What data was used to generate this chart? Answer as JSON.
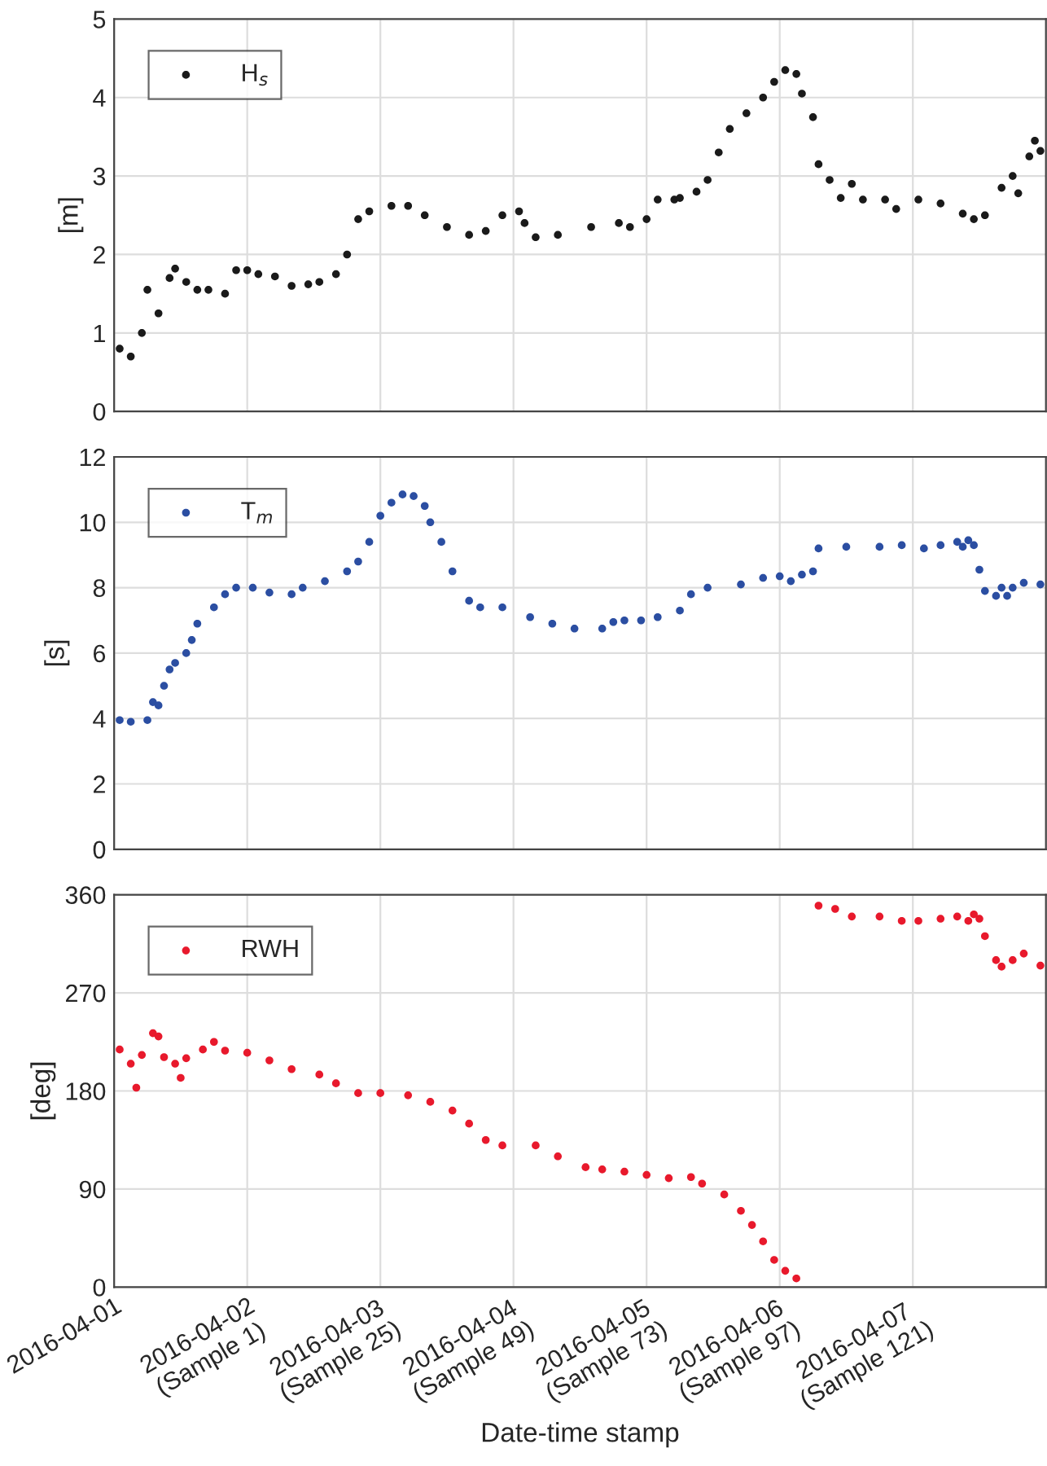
{
  "chart_data": [
    {
      "type": "scatter",
      "ylabel": "[m]",
      "legend": "top left",
      "grid": true,
      "marker": "circle",
      "tick_labels": "y",
      "xlim": [
        "2016-04-01",
        "2016-04-08"
      ],
      "xticks": [
        "2016-04-01",
        "2016-04-02",
        "2016-04-03",
        "2016-04-04",
        "2016-04-05",
        "2016-04-06",
        "2016-04-07"
      ],
      "ylim": [
        0,
        5
      ],
      "yticks": [
        0,
        1,
        2,
        3,
        4,
        5
      ],
      "series": [
        {
          "name": "H$_{s}$",
          "color": "#1a1a1a",
          "x": [
            "2016-04-01T01:00",
            "2016-04-01T03:00",
            "2016-04-01T05:00",
            "2016-04-01T06:00",
            "2016-04-01T08:00",
            "2016-04-01T10:00",
            "2016-04-01T11:00",
            "2016-04-01T13:00",
            "2016-04-01T15:00",
            "2016-04-01T17:00",
            "2016-04-01T20:00",
            "2016-04-01T22:00",
            "2016-04-02T00:00",
            "2016-04-02T02:00",
            "2016-04-02T05:00",
            "2016-04-02T08:00",
            "2016-04-02T11:00",
            "2016-04-02T13:00",
            "2016-04-02T16:00",
            "2016-04-02T18:00",
            "2016-04-02T20:00",
            "2016-04-02T22:00",
            "2016-04-03T02:00",
            "2016-04-03T05:00",
            "2016-04-03T08:00",
            "2016-04-03T12:00",
            "2016-04-03T16:00",
            "2016-04-03T19:00",
            "2016-04-03T22:00",
            "2016-04-04T01:00",
            "2016-04-04T02:00",
            "2016-04-04T04:00",
            "2016-04-04T08:00",
            "2016-04-04T14:00",
            "2016-04-04T19:00",
            "2016-04-04T21:00",
            "2016-04-05T00:00",
            "2016-04-05T02:00",
            "2016-04-05T05:00",
            "2016-04-05T06:00",
            "2016-04-05T09:00",
            "2016-04-05T11:00",
            "2016-04-05T13:00",
            "2016-04-05T15:00",
            "2016-04-05T18:00",
            "2016-04-05T21:00",
            "2016-04-05T23:00",
            "2016-04-06T01:00",
            "2016-04-06T03:00",
            "2016-04-06T04:00",
            "2016-04-06T06:00",
            "2016-04-06T07:00",
            "2016-04-06T09:00",
            "2016-04-06T11:00",
            "2016-04-06T13:00",
            "2016-04-06T15:00",
            "2016-04-06T19:00",
            "2016-04-06T21:00",
            "2016-04-07T01:00",
            "2016-04-07T05:00",
            "2016-04-07T09:00",
            "2016-04-07T11:00",
            "2016-04-07T13:00",
            "2016-04-07T16:00",
            "2016-04-07T18:00",
            "2016-04-07T19:00",
            "2016-04-07T21:00",
            "2016-04-07T22:00",
            "2016-04-07T23:00"
          ],
          "values": [
            0.8,
            0.7,
            1.0,
            1.55,
            1.25,
            1.7,
            1.82,
            1.65,
            1.55,
            1.55,
            1.5,
            1.8,
            1.8,
            1.75,
            1.72,
            1.6,
            1.62,
            1.65,
            1.75,
            2.0,
            2.45,
            2.55,
            2.62,
            2.62,
            2.5,
            2.35,
            2.25,
            2.3,
            2.5,
            2.55,
            2.4,
            2.22,
            2.25,
            2.35,
            2.4,
            2.35,
            2.45,
            2.7,
            2.7,
            2.72,
            2.8,
            2.95,
            3.3,
            3.6,
            3.8,
            4.0,
            4.2,
            4.35,
            4.3,
            4.05,
            3.75,
            3.15,
            2.95,
            2.72,
            2.9,
            2.7,
            2.7,
            2.58,
            2.7,
            2.65,
            2.52,
            2.45,
            2.5,
            2.85,
            3.0,
            2.78,
            3.25,
            3.45,
            3.32
          ]
        }
      ]
    },
    {
      "type": "scatter",
      "ylabel": "[s]",
      "legend": "top left",
      "grid": true,
      "marker": "circle",
      "tick_labels": "y",
      "xlim": [
        "2016-04-01",
        "2016-04-08"
      ],
      "xticks": [
        "2016-04-01",
        "2016-04-02",
        "2016-04-03",
        "2016-04-04",
        "2016-04-05",
        "2016-04-06",
        "2016-04-07"
      ],
      "ylim": [
        0,
        12
      ],
      "yticks": [
        0,
        2,
        4,
        6,
        8,
        10,
        12
      ],
      "series": [
        {
          "name": "T$_{m}$",
          "color": "#2b4ea2",
          "x": [
            "2016-04-01T01:00",
            "2016-04-01T03:00",
            "2016-04-01T06:00",
            "2016-04-01T07:00",
            "2016-04-01T08:00",
            "2016-04-01T09:00",
            "2016-04-01T10:00",
            "2016-04-01T11:00",
            "2016-04-01T13:00",
            "2016-04-01T14:00",
            "2016-04-01T15:00",
            "2016-04-01T18:00",
            "2016-04-01T20:00",
            "2016-04-01T22:00",
            "2016-04-02T01:00",
            "2016-04-02T04:00",
            "2016-04-02T08:00",
            "2016-04-02T10:00",
            "2016-04-02T14:00",
            "2016-04-02T18:00",
            "2016-04-02T20:00",
            "2016-04-02T22:00",
            "2016-04-03T00:00",
            "2016-04-03T02:00",
            "2016-04-03T04:00",
            "2016-04-03T06:00",
            "2016-04-03T08:00",
            "2016-04-03T09:00",
            "2016-04-03T11:00",
            "2016-04-03T13:00",
            "2016-04-03T16:00",
            "2016-04-03T18:00",
            "2016-04-03T22:00",
            "2016-04-04T03:00",
            "2016-04-04T07:00",
            "2016-04-04T11:00",
            "2016-04-04T16:00",
            "2016-04-04T18:00",
            "2016-04-04T20:00",
            "2016-04-04T23:00",
            "2016-04-05T02:00",
            "2016-04-05T06:00",
            "2016-04-05T08:00",
            "2016-04-05T11:00",
            "2016-04-05T17:00",
            "2016-04-05T21:00",
            "2016-04-06T00:00",
            "2016-04-06T02:00",
            "2016-04-06T04:00",
            "2016-04-06T06:00",
            "2016-04-06T07:00",
            "2016-04-06T12:00",
            "2016-04-06T18:00",
            "2016-04-06T22:00",
            "2016-04-07T02:00",
            "2016-04-07T05:00",
            "2016-04-07T08:00",
            "2016-04-07T09:00",
            "2016-04-07T10:00",
            "2016-04-07T11:00",
            "2016-04-07T12:00",
            "2016-04-07T13:00",
            "2016-04-07T15:00",
            "2016-04-07T16:00",
            "2016-04-07T17:00",
            "2016-04-07T18:00",
            "2016-04-07T20:00",
            "2016-04-07T23:00"
          ],
          "values": [
            3.95,
            3.9,
            3.95,
            4.5,
            4.4,
            5.0,
            5.5,
            5.7,
            6.0,
            6.4,
            6.9,
            7.4,
            7.8,
            8.0,
            8.0,
            7.85,
            7.8,
            8.0,
            8.2,
            8.5,
            8.8,
            9.4,
            10.2,
            10.6,
            10.85,
            10.8,
            10.5,
            10.0,
            9.4,
            8.5,
            7.6,
            7.4,
            7.4,
            7.1,
            6.9,
            6.75,
            6.75,
            6.95,
            7.0,
            7.0,
            7.1,
            7.3,
            7.8,
            8.0,
            8.1,
            8.3,
            8.35,
            8.2,
            8.4,
            8.5,
            9.2,
            9.25,
            9.25,
            9.3,
            9.2,
            9.3,
            9.4,
            9.25,
            9.45,
            9.3,
            8.55,
            7.9,
            7.75,
            8.0,
            7.75,
            8.0,
            8.15,
            8.1
          ]
        }
      ]
    },
    {
      "type": "scatter",
      "ylabel": "[deg]",
      "xlabel": "Date-time stamp",
      "legend": "top left",
      "grid": true,
      "marker": "circle",
      "xlim": [
        "2016-04-01",
        "2016-04-08"
      ],
      "xticks": [
        {
          "value": "2016-04-01",
          "label": "2016-04-01"
        },
        {
          "value": "2016-04-02",
          "label": "2016-04-02\n(Sample 1)"
        },
        {
          "value": "2016-04-03",
          "label": "2016-04-03\n(Sample 25)"
        },
        {
          "value": "2016-04-04",
          "label": "2016-04-04\n(Sample 49)"
        },
        {
          "value": "2016-04-05",
          "label": "2016-04-05\n(Sample 73)"
        },
        {
          "value": "2016-04-06",
          "label": "2016-04-06\n(Sample 97)"
        },
        {
          "value": "2016-04-07",
          "label": "2016-04-07\n(Sample 121)"
        }
      ],
      "ylim": [
        0,
        360
      ],
      "yticks": [
        0,
        90,
        180,
        270,
        360
      ],
      "series": [
        {
          "name": "RWH",
          "color": "#e8192c",
          "x": [
            "2016-04-01T01:00",
            "2016-04-01T03:00",
            "2016-04-01T04:00",
            "2016-04-01T05:00",
            "2016-04-01T07:00",
            "2016-04-01T08:00",
            "2016-04-01T09:00",
            "2016-04-01T11:00",
            "2016-04-01T12:00",
            "2016-04-01T13:00",
            "2016-04-01T16:00",
            "2016-04-01T18:00",
            "2016-04-01T20:00",
            "2016-04-02T00:00",
            "2016-04-02T04:00",
            "2016-04-02T08:00",
            "2016-04-02T13:00",
            "2016-04-02T16:00",
            "2016-04-02T20:00",
            "2016-04-03T00:00",
            "2016-04-03T05:00",
            "2016-04-03T09:00",
            "2016-04-03T13:00",
            "2016-04-03T16:00",
            "2016-04-03T19:00",
            "2016-04-03T22:00",
            "2016-04-04T04:00",
            "2016-04-04T08:00",
            "2016-04-04T13:00",
            "2016-04-04T16:00",
            "2016-04-04T20:00",
            "2016-04-05T00:00",
            "2016-04-05T04:00",
            "2016-04-05T08:00",
            "2016-04-05T10:00",
            "2016-04-05T14:00",
            "2016-04-05T17:00",
            "2016-04-05T19:00",
            "2016-04-05T21:00",
            "2016-04-05T23:00",
            "2016-04-06T01:00",
            "2016-04-06T03:00",
            "2016-04-06T07:00",
            "2016-04-06T10:00",
            "2016-04-06T13:00",
            "2016-04-06T18:00",
            "2016-04-06T22:00",
            "2016-04-07T01:00",
            "2016-04-07T05:00",
            "2016-04-07T08:00",
            "2016-04-07T10:00",
            "2016-04-07T11:00",
            "2016-04-07T12:00",
            "2016-04-07T13:00",
            "2016-04-07T15:00",
            "2016-04-07T16:00",
            "2016-04-07T18:00",
            "2016-04-07T20:00",
            "2016-04-07T23:00"
          ],
          "values": [
            218,
            205,
            183,
            213,
            233,
            230,
            211,
            205,
            192,
            210,
            218,
            225,
            217,
            215,
            208,
            200,
            195,
            187,
            178,
            178,
            176,
            170,
            162,
            150,
            135,
            130,
            130,
            120,
            110,
            108,
            106,
            103,
            100,
            101,
            95,
            85,
            70,
            57,
            42,
            25,
            15,
            8,
            350,
            347,
            340,
            340,
            336,
            336,
            338,
            340,
            336,
            342,
            338,
            322,
            300,
            294,
            300,
            306,
            295
          ]
        }
      ]
    }
  ]
}
